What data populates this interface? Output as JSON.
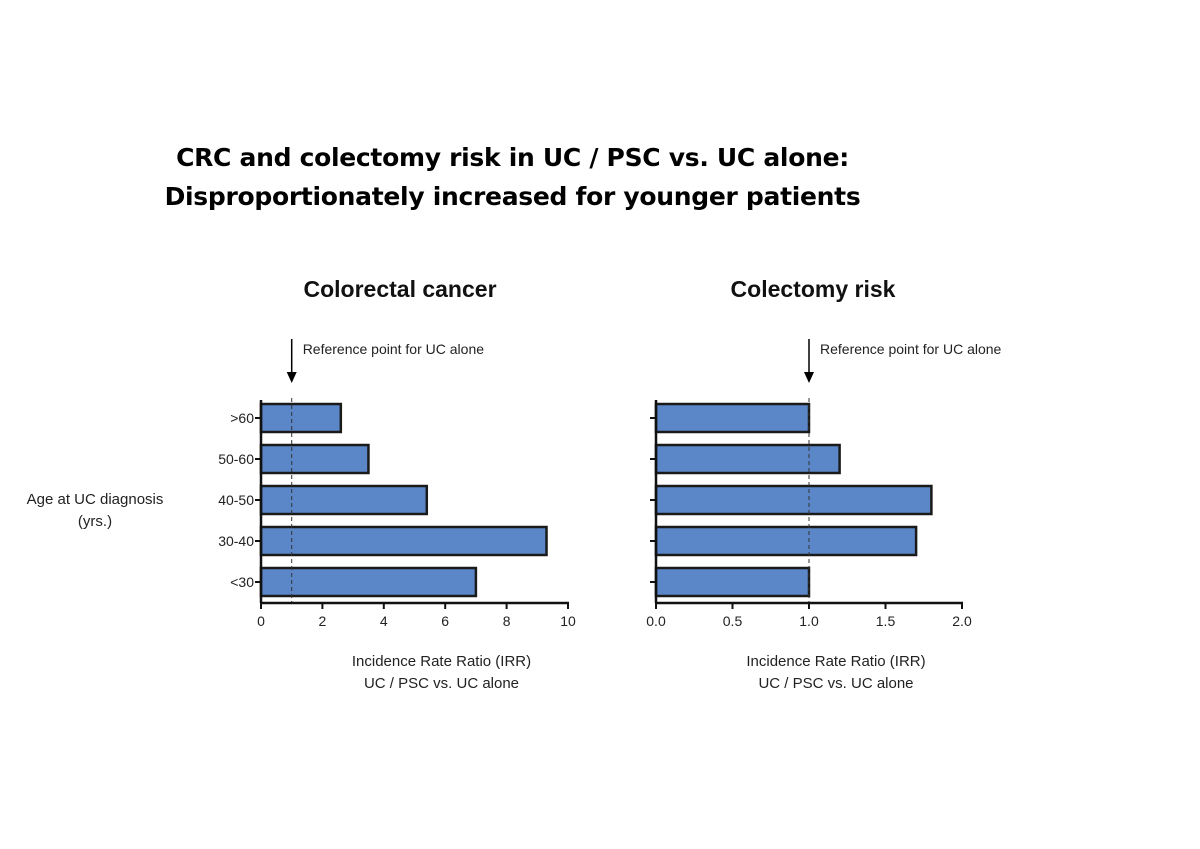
{
  "slide": {
    "title_line1": "CRC and colectomy risk in UC / PSC vs. UC alone:",
    "title_line2": "Disproportionately increased for younger patients"
  },
  "shared": {
    "ylabel_line1": "Age at UC diagnosis",
    "ylabel_line2": "(yrs.)"
  },
  "colors": {
    "bar_fill": "#5b87c9",
    "bar_stroke": "#1a1a1a",
    "axis": "#111111",
    "reference_line": "#333333"
  },
  "chart_data": [
    {
      "type": "bar",
      "orientation": "horizontal",
      "title": "Colorectal cancer",
      "categories": [
        ">60",
        "50-60",
        "40-50",
        "30-40",
        "<30"
      ],
      "values": [
        2.6,
        3.5,
        5.4,
        9.3,
        7.0
      ],
      "xlim": [
        0,
        10
      ],
      "xticks": [
        0,
        2,
        4,
        6,
        8,
        10
      ],
      "xtick_labels": [
        "0",
        "2",
        "4",
        "6",
        "8",
        "10"
      ],
      "xlabel_line1": "Incidence Rate Ratio (IRR)",
      "xlabel_line2": "UC / PSC vs. UC alone",
      "reference_value": 1,
      "reference_label": "Reference point for UC alone",
      "show_category_labels": true
    },
    {
      "type": "bar",
      "orientation": "horizontal",
      "title": "Colectomy risk",
      "categories": [
        ">60",
        "50-60",
        "40-50",
        "30-40",
        "<30"
      ],
      "values": [
        1.0,
        1.2,
        1.8,
        1.7,
        1.0
      ],
      "xlim": [
        0,
        2
      ],
      "xticks": [
        0,
        0.5,
        1.0,
        1.5,
        2.0
      ],
      "xtick_labels": [
        "0.0",
        "0.5",
        "1.0",
        "1.5",
        "2.0"
      ],
      "xlabel_line1": "Incidence Rate Ratio (IRR)",
      "xlabel_line2": "UC / PSC vs. UC alone",
      "reference_value": 1,
      "reference_label": "Reference point for UC alone",
      "show_category_labels": false
    }
  ]
}
